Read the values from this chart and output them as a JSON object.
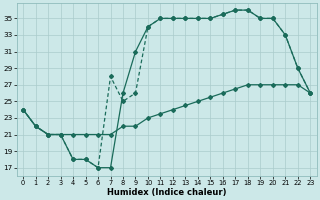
{
  "xlabel": "Humidex (Indice chaleur)",
  "bg_color": "#cce8e8",
  "grid_color": "#aacccc",
  "line_color": "#1a6b5a",
  "xlim": [
    -0.5,
    23.5
  ],
  "ylim": [
    16.0,
    36.8
  ],
  "yticks": [
    17,
    19,
    21,
    23,
    25,
    27,
    29,
    31,
    33,
    35
  ],
  "xticks": [
    0,
    1,
    2,
    3,
    4,
    5,
    6,
    7,
    8,
    9,
    10,
    11,
    12,
    13,
    14,
    15,
    16,
    17,
    18,
    19,
    20,
    21,
    22,
    23
  ],
  "line1_x": [
    0,
    1,
    2,
    3,
    4,
    5,
    6,
    7,
    8,
    9,
    10,
    11,
    12,
    13,
    14,
    15,
    16,
    17,
    18,
    19,
    20,
    21,
    22,
    23
  ],
  "line1_y": [
    24,
    22,
    21,
    21,
    18,
    18,
    17,
    17,
    26,
    31,
    34,
    35,
    35,
    35,
    35,
    35,
    35.5,
    36,
    36,
    35,
    35,
    33,
    29,
    26
  ],
  "line2_x": [
    0,
    1,
    2,
    3,
    4,
    5,
    6,
    7,
    8,
    9,
    10,
    11,
    12,
    13,
    14,
    15,
    16,
    17,
    18,
    19,
    20,
    21,
    22,
    23
  ],
  "line2_y": [
    24,
    22,
    21,
    21,
    18,
    18,
    17,
    28,
    25,
    26,
    34,
    35,
    35,
    35,
    35,
    35,
    35.5,
    36,
    36,
    35,
    35,
    33,
    29,
    26
  ],
  "line3_x": [
    0,
    1,
    2,
    3,
    4,
    5,
    6,
    7,
    8,
    9,
    10,
    11,
    12,
    13,
    14,
    15,
    16,
    17,
    18,
    19,
    20,
    21,
    22,
    23
  ],
  "line3_y": [
    24,
    22,
    21,
    21,
    21,
    21,
    21,
    21,
    22,
    22,
    23,
    23.5,
    24,
    24.5,
    25,
    25.5,
    26,
    26.5,
    27,
    27,
    27,
    27,
    27,
    26
  ]
}
